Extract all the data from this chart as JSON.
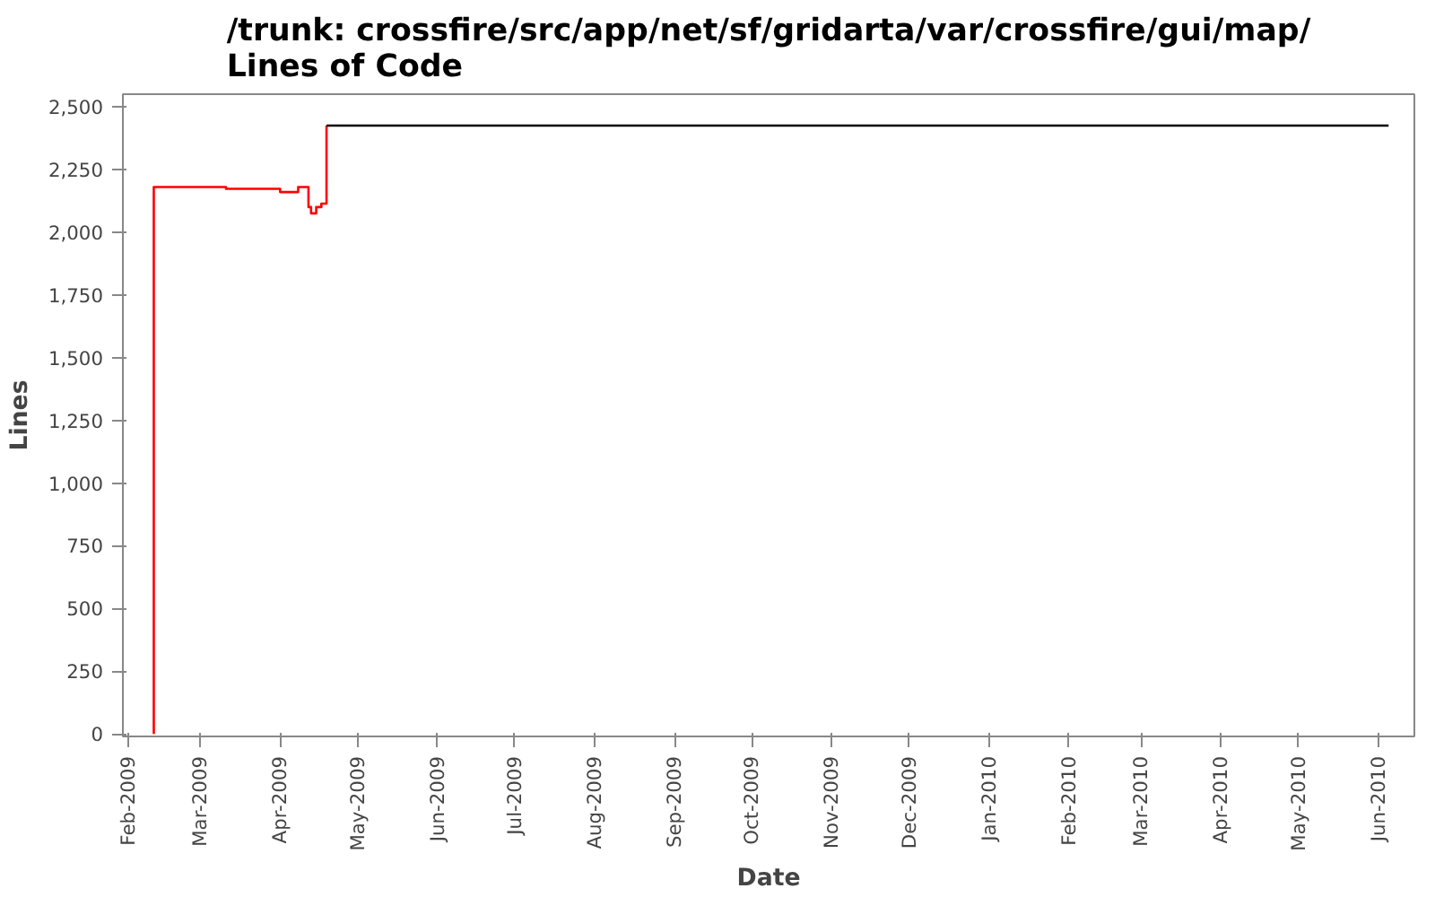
{
  "chart_data": {
    "type": "step",
    "title": "/trunk: crossfire/src/app/net/sf/gridarta/var/crossfire/gui/map/ Lines of Code",
    "xlabel": "Date",
    "ylabel": "Lines",
    "series": [
      {
        "color": "#ff0000",
        "x": [
          "2009-02-11",
          "2009-02-11",
          "2009-03-11",
          "2009-04-01",
          "2009-04-08",
          "2009-04-12",
          "2009-04-13",
          "2009-04-15",
          "2009-04-17",
          "2009-04-19"
        ],
        "values": [
          0,
          2180,
          2173,
          2160,
          2180,
          2100,
          2075,
          2100,
          2114,
          2425
        ]
      },
      {
        "color": "#000000",
        "x": [
          "2009-04-19",
          "2010-06-05"
        ],
        "values": [
          2425,
          2425
        ]
      }
    ],
    "xlim": [
      "2009-01-30",
      "2010-06-15"
    ],
    "xticks": [
      {
        "value": "2009-02-01",
        "label": "Feb-2009"
      },
      {
        "value": "2009-03-01",
        "label": "Mar-2009"
      },
      {
        "value": "2009-04-01",
        "label": "Apr-2009"
      },
      {
        "value": "2009-05-01",
        "label": "May-2009"
      },
      {
        "value": "2009-06-01",
        "label": "Jun-2009"
      },
      {
        "value": "2009-07-01",
        "label": "Jul-2009"
      },
      {
        "value": "2009-08-01",
        "label": "Aug-2009"
      },
      {
        "value": "2009-09-01",
        "label": "Sep-2009"
      },
      {
        "value": "2009-10-01",
        "label": "Oct-2009"
      },
      {
        "value": "2009-11-01",
        "label": "Nov-2009"
      },
      {
        "value": "2009-12-01",
        "label": "Dec-2009"
      },
      {
        "value": "2010-01-01",
        "label": "Jan-2010"
      },
      {
        "value": "2010-02-01",
        "label": "Feb-2010"
      },
      {
        "value": "2010-03-01",
        "label": "Mar-2010"
      },
      {
        "value": "2010-04-01",
        "label": "Apr-2010"
      },
      {
        "value": "2010-05-01",
        "label": "May-2010"
      },
      {
        "value": "2010-06-01",
        "label": "Jun-2010"
      }
    ],
    "ylim": [
      -10,
      2550
    ],
    "yticks": [
      {
        "value": 0,
        "label": "0"
      },
      {
        "value": 250,
        "label": "250"
      },
      {
        "value": 500,
        "label": "500"
      },
      {
        "value": 750,
        "label": "750"
      },
      {
        "value": 1000,
        "label": "1,000"
      },
      {
        "value": 1250,
        "label": "1,250"
      },
      {
        "value": 1500,
        "label": "1,500"
      },
      {
        "value": 1750,
        "label": "1,750"
      },
      {
        "value": 2000,
        "label": "2,000"
      },
      {
        "value": 2250,
        "label": "2,250"
      },
      {
        "value": 2500,
        "label": "2,500"
      }
    ],
    "grid": false,
    "line_style": "solid"
  }
}
